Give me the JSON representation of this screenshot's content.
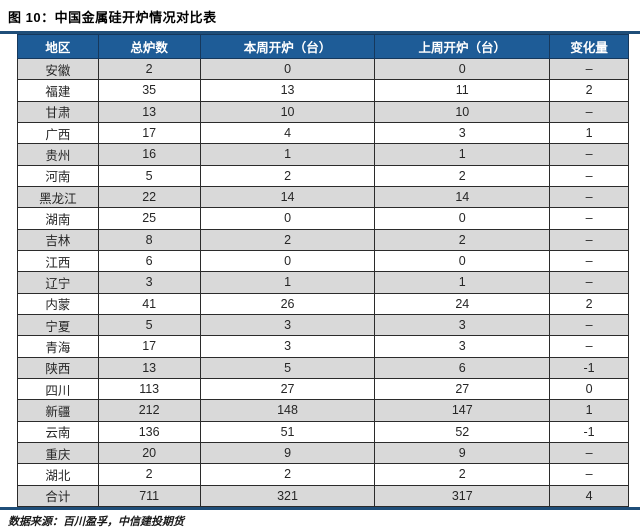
{
  "title": "图 10：中国金属硅开炉情况对比表",
  "source_note": "数据来源：百川盈孚，中信建投期货",
  "colors": {
    "header_bg": "#1E5C97",
    "header_text": "#FFFFFF",
    "stripe_row": "#D9D9D9",
    "accent_rule": "#1F4E79",
    "cell_text": "#262626"
  },
  "chart_data": {
    "type": "table",
    "title": "中国金属硅开炉情况对比表",
    "columns": [
      "地区",
      "总炉数",
      "本周开炉（台）",
      "上周开炉（台）",
      "变化量"
    ],
    "rows": [
      [
        "安徽",
        "2",
        "0",
        "0",
        "–"
      ],
      [
        "福建",
        "35",
        "13",
        "11",
        "2"
      ],
      [
        "甘肃",
        "13",
        "10",
        "10",
        "–"
      ],
      [
        "广西",
        "17",
        "4",
        "3",
        "1"
      ],
      [
        "贵州",
        "16",
        "1",
        "1",
        "–"
      ],
      [
        "河南",
        "5",
        "2",
        "2",
        "–"
      ],
      [
        "黑龙江",
        "22",
        "14",
        "14",
        "–"
      ],
      [
        "湖南",
        "25",
        "0",
        "0",
        "–"
      ],
      [
        "吉林",
        "8",
        "2",
        "2",
        "–"
      ],
      [
        "江西",
        "6",
        "0",
        "0",
        "–"
      ],
      [
        "辽宁",
        "3",
        "1",
        "1",
        "–"
      ],
      [
        "内蒙",
        "41",
        "26",
        "24",
        "2"
      ],
      [
        "宁夏",
        "5",
        "3",
        "3",
        "–"
      ],
      [
        "青海",
        "17",
        "3",
        "3",
        "–"
      ],
      [
        "陕西",
        "13",
        "5",
        "6",
        "-1"
      ],
      [
        "四川",
        "113",
        "27",
        "27",
        "0"
      ],
      [
        "新疆",
        "212",
        "148",
        "147",
        "1"
      ],
      [
        "云南",
        "136",
        "51",
        "52",
        "-1"
      ],
      [
        "重庆",
        "20",
        "9",
        "9",
        "–"
      ],
      [
        "湖北",
        "2",
        "2",
        "2",
        "–"
      ],
      [
        "合计",
        "711",
        "321",
        "317",
        "4"
      ]
    ]
  }
}
